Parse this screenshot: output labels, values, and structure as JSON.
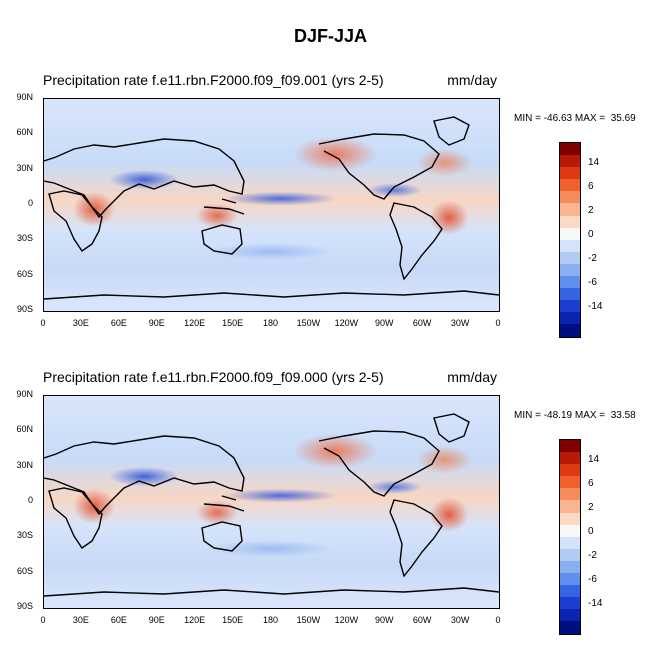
{
  "title": "DJF-JJA",
  "panels": [
    {
      "title": "Precipitation rate f.e11.rbn.F2000.f09_f09.001 (yrs 2-5)",
      "units": "mm/day",
      "minmax": "MIN = -46.63 MAX =  35.69"
    },
    {
      "title": "Precipitation rate f.e11.rbn.F2000.f09_f09.000 (yrs 2-5)",
      "units": "mm/day",
      "minmax": "MIN = -48.19 MAX =  33.58"
    }
  ],
  "lat_labels": [
    "90N",
    "60N",
    "30N",
    "0",
    "30S",
    "60S",
    "90S"
  ],
  "lon_labels": [
    "0",
    "30E",
    "60E",
    "90E",
    "120E",
    "150E",
    "180",
    "150W",
    "120W",
    "90W",
    "60W",
    "30W",
    "0"
  ],
  "colorbar": {
    "colors": [
      "#800000",
      "#b71a08",
      "#dc3a12",
      "#f0602c",
      "#f68c5c",
      "#f9b592",
      "#fcd9c4",
      "#f7f7f7",
      "#d4e3f9",
      "#b2cbf3",
      "#8aaff0",
      "#5f8eeb",
      "#3565e0",
      "#1c3fcf",
      "#0a23b0",
      "#000f80"
    ],
    "labels": [
      "14",
      "6",
      "2",
      "0",
      "-2",
      "-6",
      "-14"
    ]
  }
}
